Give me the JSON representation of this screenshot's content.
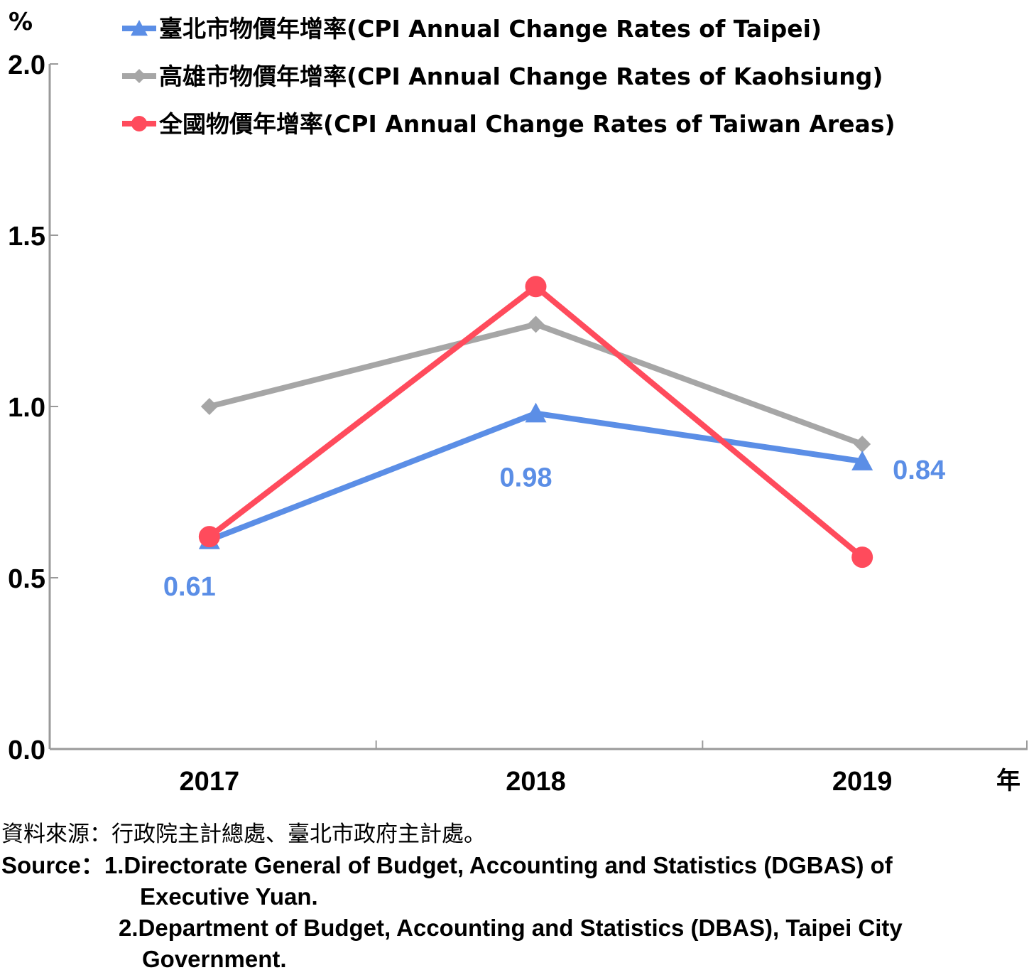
{
  "chart_data": {
    "type": "line",
    "y_unit": "%",
    "x_unit": "年",
    "categories": [
      "2017",
      "2018",
      "2019"
    ],
    "ylim": [
      0.0,
      2.0
    ],
    "yticks": [
      "0.0",
      "0.5",
      "1.0",
      "1.5",
      "2.0"
    ],
    "grid": false,
    "legend_position": "top",
    "series": [
      {
        "name": "臺北市物價年增率(CPI Annual Change Rates of Taipei)",
        "marker": "triangle",
        "color": "#5b8ee6",
        "values": [
          0.61,
          0.98,
          0.84
        ]
      },
      {
        "name": "高雄市物價年增率(CPI Annual Change Rates of Kaohsiung)",
        "marker": "diamond",
        "color": "#a6a6a6",
        "values": [
          1.0,
          1.24,
          0.89
        ]
      },
      {
        "name": "全國物價年增率(CPI Annual Change Rates of Taiwan Areas)",
        "marker": "circle",
        "color": "#ff4b5c",
        "values": [
          0.62,
          1.35,
          0.56
        ]
      }
    ],
    "data_labels": [
      {
        "text": "0.61",
        "series": 0,
        "index": 0
      },
      {
        "text": "0.98",
        "series": 0,
        "index": 1
      },
      {
        "text": "0.84",
        "series": 0,
        "index": 2
      }
    ]
  },
  "source": {
    "zh": "資料來源：行政院主計總處、臺北市政府主計處。",
    "en_prefix": "Source：",
    "item1_a": "1.Directorate General of Budget, Accounting and Statistics (DGBAS) of",
    "item1_b": "Executive Yuan.",
    "item2_a": "2.Department of Budget, Accounting and Statistics (DBAS), Taipei City",
    "item2_b": "Government."
  }
}
